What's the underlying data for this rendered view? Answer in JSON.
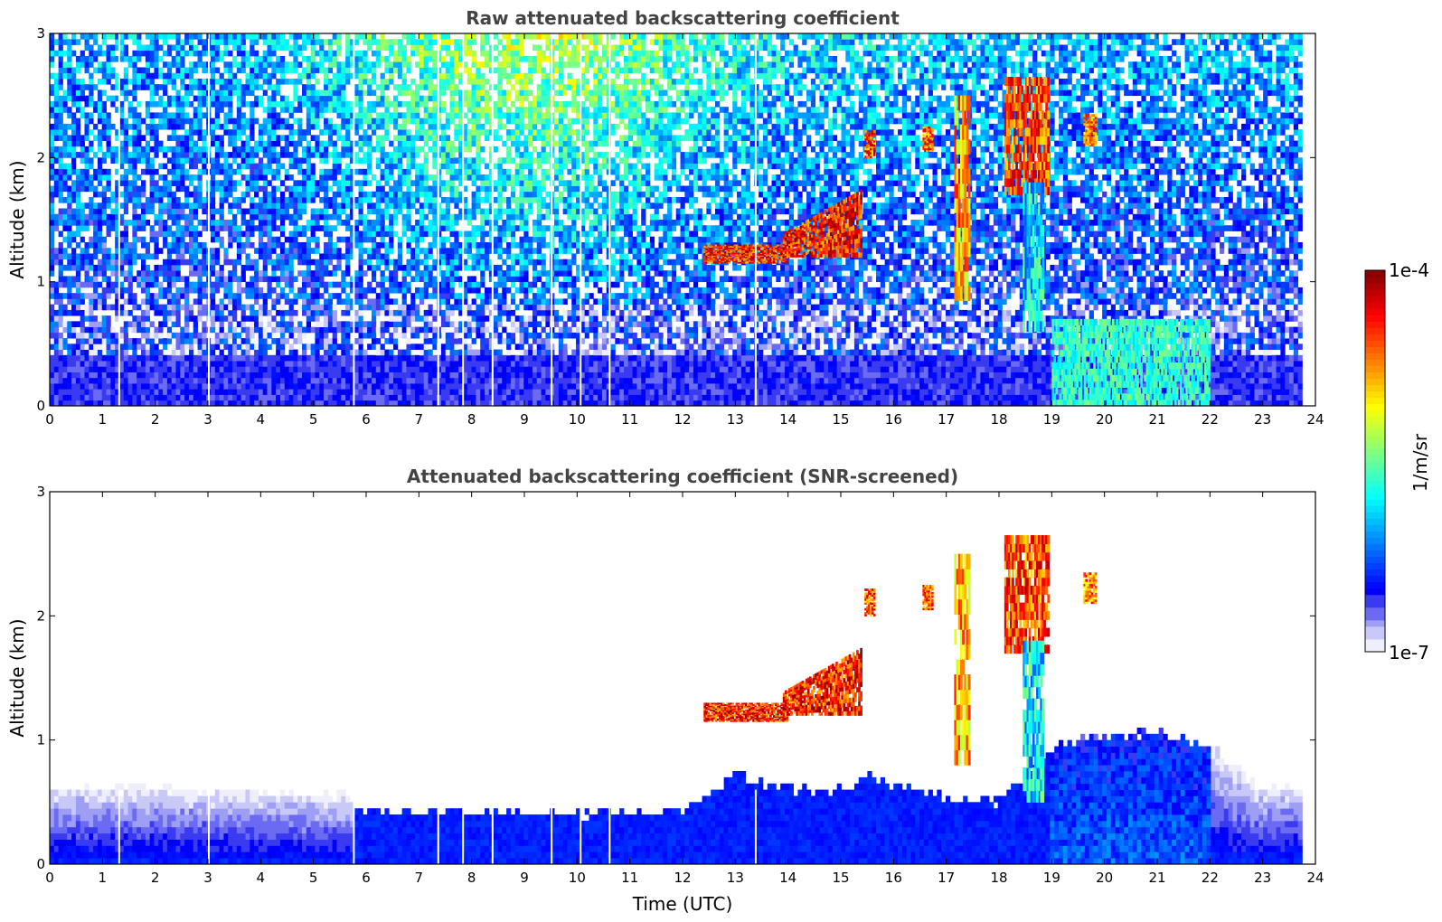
{
  "chart_data": [
    {
      "type": "heatmap",
      "title": "Raw attenuated backscattering coefficient",
      "xlabel": "",
      "ylabel": "Altitude (km)",
      "xlim": [
        0,
        24
      ],
      "ylim": [
        0,
        3
      ],
      "xticks": [
        "0",
        "1",
        "2",
        "3",
        "4",
        "5",
        "6",
        "7",
        "8",
        "9",
        "10",
        "11",
        "12",
        "13",
        "14",
        "15",
        "16",
        "17",
        "18",
        "19",
        "20",
        "21",
        "22",
        "23",
        "24"
      ],
      "yticks": [
        "0",
        "1",
        "2",
        "3"
      ],
      "data_end_hour": 23.75,
      "noise_top_log": {
        "t": [
          0,
          4,
          5.5,
          8,
          10,
          12,
          14,
          15,
          17,
          20,
          23.75
        ],
        "v": [
          -6.0,
          -6.0,
          -5.75,
          -5.3,
          -5.25,
          -5.6,
          -5.85,
          -5.85,
          -5.95,
          -6.0,
          -6.0
        ]
      },
      "gaps_hours": [
        1.3,
        3.0,
        5.75,
        7.35,
        7.82,
        8.38,
        9.5,
        10.05,
        10.6,
        13.37
      ],
      "features": [
        {
          "kind": "cloud",
          "t_start": 12.4,
          "t_end": 14.0,
          "alt_bottom": 1.15,
          "alt_top": 1.3,
          "log_value": -4.0
        },
        {
          "kind": "cloud",
          "t_start": 13.9,
          "t_end": 15.4,
          "alt_bottom": 1.2,
          "alt_top": 1.75,
          "log_value": -4.0
        },
        {
          "kind": "cloud",
          "t_start": 15.45,
          "t_end": 15.65,
          "alt_bottom": 2.0,
          "alt_top": 2.22,
          "log_value": -4.1
        },
        {
          "kind": "cloud",
          "t_start": 16.55,
          "t_end": 16.75,
          "alt_bottom": 2.05,
          "alt_top": 2.25,
          "log_value": -4.2
        },
        {
          "kind": "cloud",
          "t_start": 17.15,
          "t_end": 17.45,
          "alt_bottom": 0.85,
          "alt_top": 2.5,
          "log_value": -4.4
        },
        {
          "kind": "cloud",
          "t_start": 18.1,
          "t_end": 18.95,
          "alt_bottom": 1.7,
          "alt_top": 2.65,
          "log_value": -4.1
        },
        {
          "kind": "rain",
          "t_start": 18.45,
          "t_end": 18.85,
          "alt_bottom": 0.6,
          "alt_top": 1.8,
          "log_value": -5.4
        },
        {
          "kind": "cloud",
          "t_start": 19.6,
          "t_end": 19.85,
          "alt_bottom": 2.1,
          "alt_top": 2.35,
          "log_value": -4.3
        },
        {
          "kind": "boundary",
          "t_start": 19.0,
          "t_end": 22.0,
          "alt_bottom": 0.0,
          "alt_top": 0.7,
          "log_value": -5.65
        }
      ]
    },
    {
      "type": "heatmap",
      "title": "Attenuated backscattering coefficient (SNR-screened)",
      "xlabel": "Time (UTC)",
      "ylabel": "Altitude (km)",
      "xlim": [
        0,
        24
      ],
      "ylim": [
        0,
        3
      ],
      "xticks": [
        "0",
        "1",
        "2",
        "3",
        "4",
        "5",
        "6",
        "7",
        "8",
        "9",
        "10",
        "11",
        "12",
        "13",
        "14",
        "15",
        "16",
        "17",
        "18",
        "19",
        "20",
        "21",
        "22",
        "23",
        "24"
      ],
      "yticks": [
        "0",
        "1",
        "2",
        "3"
      ],
      "data_end_hour": 23.75,
      "blh_km": {
        "t": [
          0,
          2,
          4,
          5.7,
          5.8,
          8,
          10,
          11,
          12,
          12.5,
          13,
          13.5,
          14,
          15,
          15.5,
          16,
          17,
          18,
          19,
          20,
          21,
          22,
          23,
          23.75
        ],
        "v": [
          0.6,
          0.6,
          0.58,
          0.55,
          0.45,
          0.42,
          0.4,
          0.42,
          0.45,
          0.55,
          0.75,
          0.65,
          0.6,
          0.6,
          0.7,
          0.65,
          0.55,
          0.5,
          0.95,
          1.05,
          1.05,
          0.95,
          0.6,
          0.6
        ]
      },
      "features": [
        {
          "kind": "cloud",
          "t_start": 12.4,
          "t_end": 14.0,
          "alt_bottom": 1.15,
          "alt_top": 1.3,
          "log_value": -4.0
        },
        {
          "kind": "cloud",
          "t_start": 13.9,
          "t_end": 15.4,
          "alt_bottom": 1.2,
          "alt_top": 1.75,
          "log_value": -4.0
        },
        {
          "kind": "cloud",
          "t_start": 15.45,
          "t_end": 15.65,
          "alt_bottom": 2.0,
          "alt_top": 2.22,
          "log_value": -4.1
        },
        {
          "kind": "cloud",
          "t_start": 16.55,
          "t_end": 16.75,
          "alt_bottom": 2.05,
          "alt_top": 2.25,
          "log_value": -4.2
        },
        {
          "kind": "cloud",
          "t_start": 17.15,
          "t_end": 17.45,
          "alt_bottom": 0.8,
          "alt_top": 2.5,
          "log_value": -4.4
        },
        {
          "kind": "cloud",
          "t_start": 18.1,
          "t_end": 18.95,
          "alt_bottom": 1.7,
          "alt_top": 2.65,
          "log_value": -4.1
        },
        {
          "kind": "rain",
          "t_start": 18.45,
          "t_end": 18.85,
          "alt_bottom": 0.5,
          "alt_top": 1.8,
          "log_value": -5.4
        },
        {
          "kind": "cloud",
          "t_start": 19.6,
          "t_end": 19.85,
          "alt_bottom": 2.1,
          "alt_top": 2.35,
          "log_value": -4.3
        }
      ]
    }
  ],
  "colorbar": {
    "label": "1/m/sr",
    "max_label": "1e-4",
    "min_label": "1e-7",
    "log_min": -7,
    "log_max": -4
  }
}
